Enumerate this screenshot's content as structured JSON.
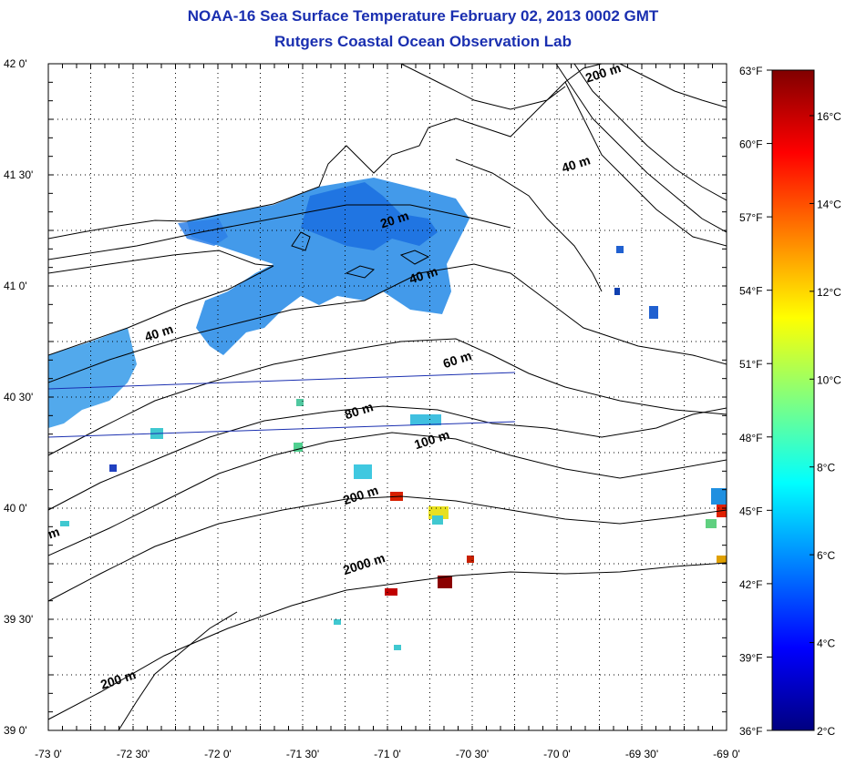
{
  "header": {
    "title": "NOAA-16 Sea Surface Temperature February 02, 2013 0002 GMT",
    "subtitle": "Rutgers Coastal Ocean Observation Lab"
  },
  "map": {
    "lon_range": [
      -73,
      -69
    ],
    "lat_range": [
      39,
      42
    ],
    "lon_ticks": [
      {
        "value": -73.0,
        "label": "-73 0'"
      },
      {
        "value": -72.5,
        "label": "-72 30'"
      },
      {
        "value": -72.0,
        "label": "-72 0'"
      },
      {
        "value": -71.5,
        "label": "-71 30'"
      },
      {
        "value": -71.0,
        "label": "-71 0'"
      },
      {
        "value": -70.5,
        "label": "-70 30'"
      },
      {
        "value": -70.0,
        "label": "-70 0'"
      },
      {
        "value": -69.5,
        "label": "-69 30'"
      },
      {
        "value": -69.0,
        "label": "-69 0'"
      }
    ],
    "lat_ticks": [
      {
        "value": 42.0,
        "label": "42 0'"
      },
      {
        "value": 41.5,
        "label": "41 30'"
      },
      {
        "value": 41.0,
        "label": "41 0'"
      },
      {
        "value": 40.5,
        "label": "40 30'"
      },
      {
        "value": 40.0,
        "label": "40 0'"
      },
      {
        "value": 39.5,
        "label": "39 30'"
      },
      {
        "value": 39.0,
        "label": "39 0'"
      }
    ],
    "grid": "dotted",
    "contour_labels": [
      {
        "text": "20 m",
        "lon": -70.95,
        "lat": 41.28
      },
      {
        "text": "40 m",
        "lon": -70.78,
        "lat": 41.03
      },
      {
        "text": "40 m",
        "lon": -72.34,
        "lat": 40.77
      },
      {
        "text": "60 m",
        "lon": -70.58,
        "lat": 40.65
      },
      {
        "text": "80 m",
        "lon": -71.16,
        "lat": 40.42
      },
      {
        "text": "100 m",
        "lon": -70.73,
        "lat": 40.29
      },
      {
        "text": "200 m",
        "lon": -71.15,
        "lat": 40.04
      },
      {
        "text": "2000 m",
        "lon": -71.13,
        "lat": 39.73
      },
      {
        "text": "200 m",
        "lon": -72.58,
        "lat": 39.21
      },
      {
        "text": "40 m",
        "lon": -69.88,
        "lat": 41.53
      },
      {
        "text": "200 m",
        "lon": -69.72,
        "lat": 41.94
      },
      {
        "text": "m",
        "lon": -72.96,
        "lat": 39.87
      }
    ]
  },
  "colorbar": {
    "fahrenheit_ticks": [
      "63°F",
      "60°F",
      "57°F",
      "54°F",
      "51°F",
      "48°F",
      "45°F",
      "42°F",
      "39°F",
      "36°F"
    ],
    "celsius_ticks": [
      "16°C",
      "14°C",
      "12°C",
      "10°C",
      "8°C",
      "6°C",
      "4°C",
      "2°C"
    ],
    "colors": [
      "#000080",
      "#0000ff",
      "#0080ff",
      "#00ffff",
      "#80ff80",
      "#ffff00",
      "#ff8000",
      "#ff0000",
      "#800000"
    ]
  }
}
